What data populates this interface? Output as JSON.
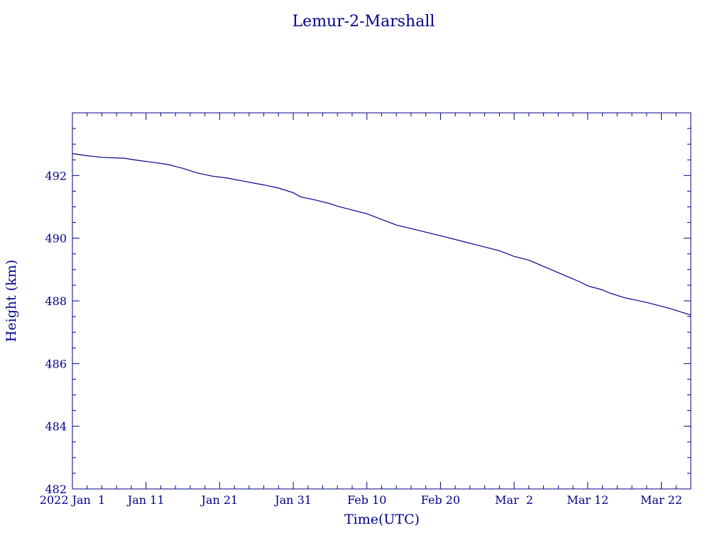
{
  "chart_data": {
    "type": "line",
    "title": "Lemur-2-Marshall",
    "xlabel": "Time(UTC)",
    "ylabel": "Height (km)",
    "color": "#00008b",
    "x_tick_labels": [
      "2022 Jan  1",
      "Jan 11",
      "Jan 21",
      "Jan 31",
      "Feb 10",
      "Feb 20",
      "Mar  2",
      "Mar 12",
      "Mar 22"
    ],
    "x_ticks": [
      "2022-01-01",
      "2022-01-11",
      "2022-01-21",
      "2022-01-31",
      "2022-02-10",
      "2022-02-20",
      "2022-03-02",
      "2022-03-12",
      "2022-03-22"
    ],
    "xlim": [
      "2022-01-01",
      "2022-03-26"
    ],
    "y_ticks": [
      482,
      484,
      486,
      488,
      490,
      492
    ],
    "y_tick_labels": [
      "482",
      "484",
      "486",
      "488",
      "490",
      "492"
    ],
    "ylim": [
      482,
      494
    ],
    "grid": false,
    "series": [
      {
        "x": [
          "2022-01-01",
          "2022-01-03",
          "2022-01-05",
          "2022-01-08",
          "2022-01-10",
          "2022-01-12",
          "2022-01-14",
          "2022-01-16",
          "2022-01-18",
          "2022-01-20",
          "2022-01-22",
          "2022-01-24",
          "2022-01-27",
          "2022-01-29",
          "2022-01-31",
          "2022-02-01",
          "2022-02-03",
          "2022-02-05",
          "2022-02-06",
          "2022-02-08",
          "2022-02-10",
          "2022-02-12",
          "2022-02-14",
          "2022-02-17",
          "2022-02-21",
          "2022-02-25",
          "2022-02-28",
          "2022-03-02",
          "2022-03-04",
          "2022-03-06",
          "2022-03-09",
          "2022-03-11",
          "2022-03-12",
          "2022-03-14",
          "2022-03-15",
          "2022-03-17",
          "2022-03-20",
          "2022-03-23",
          "2022-03-26"
        ],
        "y": [
          492.7,
          492.63,
          492.58,
          492.55,
          492.48,
          492.42,
          492.35,
          492.23,
          492.08,
          491.98,
          491.92,
          491.83,
          491.7,
          491.6,
          491.45,
          491.32,
          491.22,
          491.1,
          491.02,
          490.9,
          490.78,
          490.6,
          490.42,
          490.25,
          490.02,
          489.78,
          489.6,
          489.42,
          489.3,
          489.1,
          488.8,
          488.6,
          488.48,
          488.35,
          488.25,
          488.1,
          487.95,
          487.77,
          487.55
        ]
      }
    ]
  }
}
